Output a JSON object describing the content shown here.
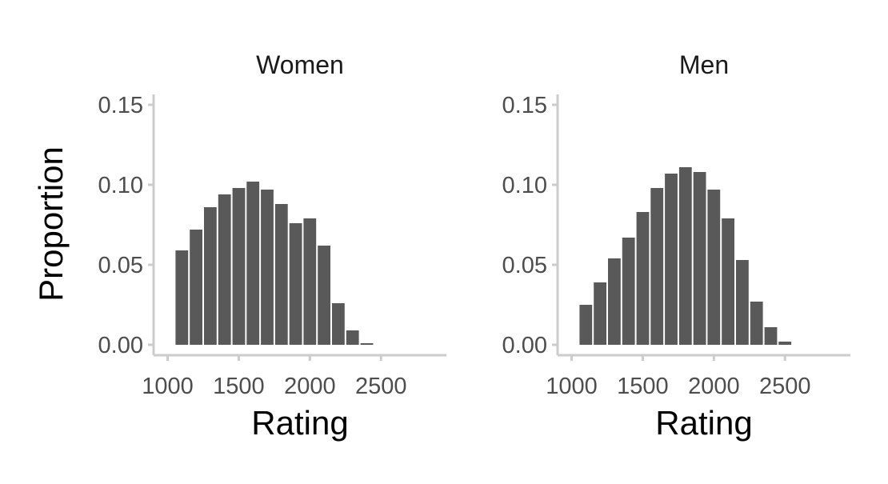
{
  "chart_data": [
    {
      "type": "bar",
      "title": "Women",
      "xlabel": "Rating",
      "ylabel": "Proportion",
      "xlim": [
        980,
        2960
      ],
      "ylim": [
        0,
        0.155
      ],
      "xticks": [
        1000,
        1500,
        2000,
        2500
      ],
      "xtick_labels": [
        "1000",
        "1500",
        "2000",
        "2500"
      ],
      "yticks": [
        0,
        0.05,
        0.1,
        0.15
      ],
      "ytick_labels": [
        "0.00",
        "0.05",
        "0.10",
        "0.15"
      ],
      "bin_width": 100,
      "x": [
        1100,
        1200,
        1300,
        1400,
        1500,
        1600,
        1700,
        1800,
        1900,
        2000,
        2100,
        2200,
        2300,
        2400
      ],
      "values": [
        0.059,
        0.072,
        0.086,
        0.094,
        0.098,
        0.102,
        0.097,
        0.088,
        0.076,
        0.079,
        0.062,
        0.026,
        0.009,
        0.001
      ],
      "grid": false
    },
    {
      "type": "bar",
      "title": "Men",
      "xlabel": "Rating",
      "ylabel": "",
      "xlim": [
        980,
        2960
      ],
      "ylim": [
        0,
        0.155
      ],
      "xticks": [
        1000,
        1500,
        2000,
        2500
      ],
      "xtick_labels": [
        "1000",
        "1500",
        "2000",
        "2500"
      ],
      "yticks": [
        0,
        0.05,
        0.1,
        0.15
      ],
      "ytick_labels": [
        "0.00",
        "0.05",
        "0.10",
        "0.15"
      ],
      "bin_width": 100,
      "x": [
        1100,
        1200,
        1300,
        1400,
        1500,
        1600,
        1700,
        1800,
        1900,
        2000,
        2100,
        2200,
        2300,
        2400,
        2500
      ],
      "values": [
        0.025,
        0.039,
        0.054,
        0.067,
        0.083,
        0.098,
        0.107,
        0.111,
        0.108,
        0.097,
        0.079,
        0.053,
        0.027,
        0.011,
        0.002
      ],
      "grid": false
    }
  ]
}
